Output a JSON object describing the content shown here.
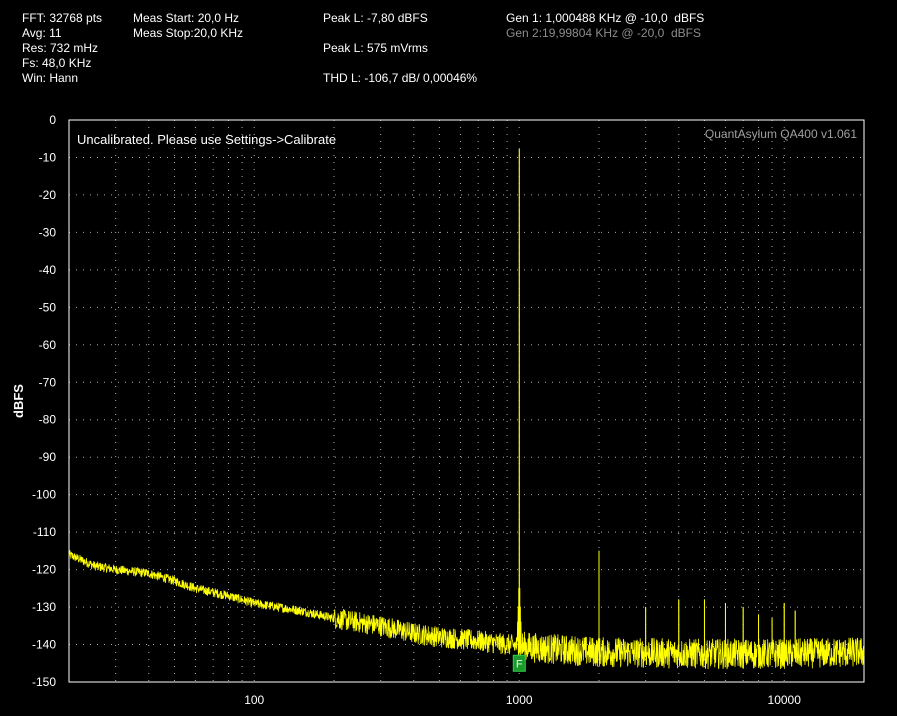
{
  "info": {
    "fft": "FFT: 32768 pts",
    "avg": "Avg: 11",
    "res": "Res: 732 mHz",
    "fs": "Fs: 48,0 KHz",
    "win": "Win: Hann",
    "meas_start": "Meas Start: 20,0 Hz",
    "meas_stop": "Meas Stop:20,0 KHz",
    "peak_dbfs": "Peak L: -7,80 dBFS",
    "peak_vrms": "Peak L: 575 mVrms",
    "thd": "THD L: -106,7 dB/ 0,00046%",
    "gen1": "Gen 1: 1,000488 KHz @ -10,0  dBFS",
    "gen2": "Gen 2:19,99804 KHz @ -20,0  dBFS"
  },
  "plot": {
    "note": "Uncalibrated. Please use Settings->Calibrate",
    "brand": "QuantAsylum QA400 v1.061",
    "marker_label": "F"
  },
  "colors": {
    "background": "#000000",
    "trace": "#ffff00",
    "grid": "#d8d8d8",
    "marker": "#1a9a2a"
  },
  "chart_data": {
    "type": "line",
    "title": "",
    "xlabel": "",
    "ylabel": "dBFS",
    "xscale": "log",
    "xlim": [
      20,
      20000
    ],
    "ylim": [
      -150,
      0
    ],
    "xticks": [
      "100",
      "1000",
      "10000"
    ],
    "yticks": [
      "0",
      "-10",
      "-20",
      "-30",
      "-40",
      "-50",
      "-60",
      "-70",
      "-80",
      "-90",
      "-100",
      "-110",
      "-120",
      "-130",
      "-140",
      "-150"
    ],
    "grid": true,
    "series": [
      {
        "color": "#ffff00",
        "noise_floor": {
          "x": [
            20,
            25,
            30,
            40,
            50,
            60,
            80,
            100,
            150,
            200,
            300,
            400,
            500,
            700,
            900,
            1200,
            2000,
            5000,
            10000,
            20000
          ],
          "y": [
            -116,
            -119,
            -120,
            -121,
            -123,
            -125,
            -127,
            -129,
            -131,
            -133,
            -135,
            -137,
            -138,
            -139,
            -140,
            -141,
            -142,
            -142.5,
            -142.5,
            -142
          ]
        },
        "peaks": {
          "x": [
            1000.488,
            2000,
            3000,
            4000,
            5000,
            6000,
            7000,
            8000,
            9000,
            10000,
            11000
          ],
          "y": [
            -7.8,
            -115,
            -130,
            -128,
            -128,
            -129,
            -130,
            -132,
            -133,
            -129,
            -131
          ]
        }
      }
    ],
    "marker": {
      "x": 1000.488,
      "y": -145,
      "label": "F"
    }
  }
}
